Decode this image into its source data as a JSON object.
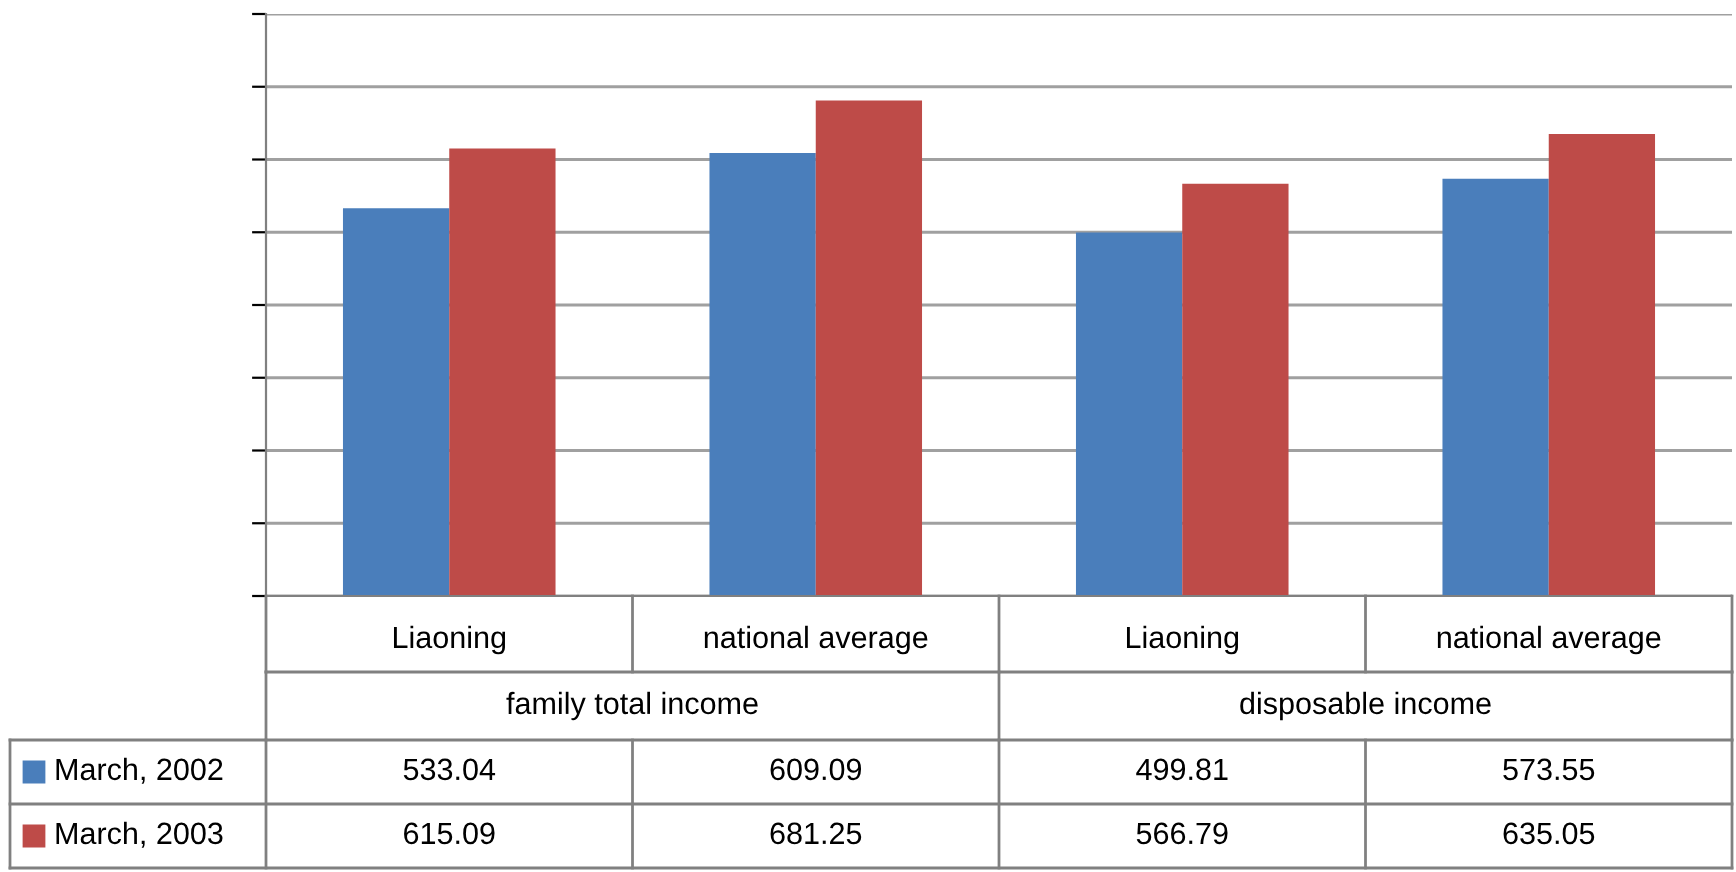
{
  "chart_data": {
    "type": "bar",
    "categories": [
      "Liaoning",
      "national average",
      "Liaoning",
      "national average"
    ],
    "annotations": [
      "family total income",
      "disposable income"
    ],
    "series": [
      {
        "name": "March, 2002",
        "color": "#4a7ebb",
        "values": [
          533.04,
          609.09,
          499.81,
          573.55
        ]
      },
      {
        "name": "March, 2003",
        "color": "#be4b48",
        "values": [
          615.09,
          681.25,
          566.79,
          635.05
        ]
      }
    ],
    "ylim": [
      0,
      800
    ],
    "yticks": [
      {
        "value": 0,
        "label": null
      },
      {
        "value": 100,
        "label": null
      },
      {
        "value": 200,
        "label": null
      },
      {
        "value": 300,
        "label": null
      },
      {
        "value": 400,
        "label": null
      },
      {
        "value": 500,
        "label": null
      },
      {
        "value": 600,
        "label": null
      },
      {
        "value": 700,
        "label": null
      },
      {
        "value": 800,
        "label": null
      }
    ],
    "grid": "y",
    "tick_labels": "x",
    "data_labels": true,
    "legend": "bottom"
  }
}
